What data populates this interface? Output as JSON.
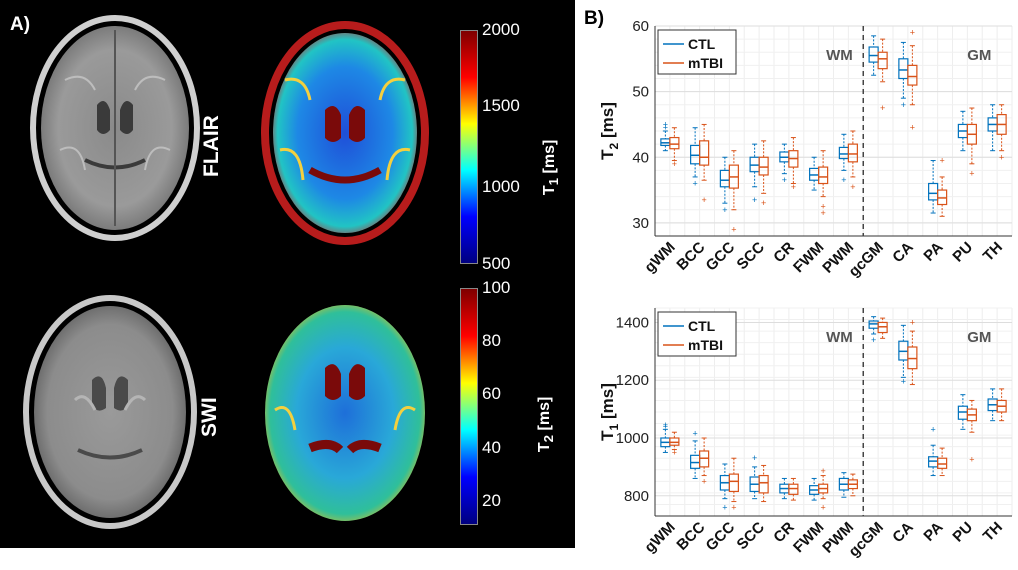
{
  "panel_a": {
    "label": "A)",
    "rows": [
      {
        "sequence": "FLAIR",
        "colorbar": {
          "ticks": [
            "2000",
            "1500",
            "1000",
            "500"
          ],
          "title_main": "T",
          "title_sub": "1",
          "title_unit": " [ms]"
        }
      },
      {
        "sequence": "SWI",
        "colorbar": {
          "ticks": [
            "100",
            "80",
            "60",
            "40",
            "20"
          ],
          "title_main": "T",
          "title_sub": "2",
          "title_unit": " [ms]"
        }
      }
    ]
  },
  "panel_b": {
    "label": "B)"
  },
  "colors": {
    "ctl": "#0072BD",
    "mtbi": "#D95319",
    "divider": "#444444"
  },
  "chart_data": [
    {
      "type": "box",
      "id": "t2",
      "ylabel_main": "T",
      "ylabel_sub": "2",
      "ylabel_unit": " [ms]",
      "ylim": [
        28,
        60
      ],
      "yticks": [
        30,
        40,
        50,
        60
      ],
      "grid": true,
      "legend_position": "top-left",
      "legend": [
        "CTL",
        "mTBI"
      ],
      "region_labels": [
        "WM",
        "GM"
      ],
      "categories": [
        "gWM",
        "BCC",
        "GCC",
        "SCC",
        "CR",
        "FWM",
        "PWM",
        "gcGM",
        "CA",
        "PA",
        "PU",
        "TH"
      ],
      "divider_after_index": 6,
      "series": [
        {
          "name": "CTL",
          "boxes": [
            {
              "q1": 41.8,
              "median": 42.2,
              "q3": 42.8,
              "whislo": 41.0,
              "whishi": 44.0,
              "outliers": [
                44.5,
                45.0
              ]
            },
            {
              "q1": 39.0,
              "median": 40.3,
              "q3": 41.8,
              "whislo": 37.0,
              "whishi": 44.5,
              "outliers": [
                36.0
              ]
            },
            {
              "q1": 35.5,
              "median": 36.5,
              "q3": 38.0,
              "whislo": 33.0,
              "whishi": 40.0,
              "outliers": [
                32.0
              ]
            },
            {
              "q1": 37.8,
              "median": 38.8,
              "q3": 40.0,
              "whislo": 35.5,
              "whishi": 42.0,
              "outliers": [
                33.5
              ]
            },
            {
              "q1": 39.3,
              "median": 40.0,
              "q3": 40.8,
              "whislo": 37.5,
              "whishi": 42.0,
              "outliers": [
                36.5
              ]
            },
            {
              "q1": 36.5,
              "median": 37.3,
              "q3": 38.3,
              "whislo": 35.0,
              "whishi": 40.0,
              "outliers": []
            },
            {
              "q1": 39.8,
              "median": 40.5,
              "q3": 41.5,
              "whislo": 38.0,
              "whishi": 43.5,
              "outliers": [
                36.5
              ]
            },
            {
              "q1": 54.5,
              "median": 55.5,
              "q3": 56.8,
              "whislo": 52.5,
              "whishi": 58.5,
              "outliers": []
            },
            {
              "q1": 52.0,
              "median": 53.3,
              "q3": 55.0,
              "whislo": 49.0,
              "whishi": 57.5,
              "outliers": [
                48.0
              ]
            },
            {
              "q1": 33.5,
              "median": 34.5,
              "q3": 36.0,
              "whislo": 31.5,
              "whishi": 39.5,
              "outliers": []
            },
            {
              "q1": 43.0,
              "median": 44.0,
              "q3": 45.0,
              "whislo": 41.0,
              "whishi": 47.0,
              "outliers": []
            },
            {
              "q1": 44.0,
              "median": 45.0,
              "q3": 46.0,
              "whislo": 41.0,
              "whishi": 48.0,
              "outliers": []
            }
          ]
        },
        {
          "name": "mTBI",
          "boxes": [
            {
              "q1": 41.3,
              "median": 42.0,
              "q3": 43.0,
              "whislo": 39.5,
              "whishi": 44.5,
              "outliers": [
                39.0
              ]
            },
            {
              "q1": 38.8,
              "median": 40.0,
              "q3": 42.5,
              "whislo": 36.5,
              "whishi": 45.0,
              "outliers": [
                33.5
              ]
            },
            {
              "q1": 35.3,
              "median": 37.0,
              "q3": 38.8,
              "whislo": 32.0,
              "whishi": 41.0,
              "outliers": [
                29.0
              ]
            },
            {
              "q1": 37.3,
              "median": 38.5,
              "q3": 40.0,
              "whislo": 34.5,
              "whishi": 42.5,
              "outliers": [
                33.0
              ]
            },
            {
              "q1": 38.5,
              "median": 39.8,
              "q3": 41.0,
              "whislo": 36.0,
              "whishi": 43.0,
              "outliers": [
                35.5
              ]
            },
            {
              "q1": 36.0,
              "median": 37.0,
              "q3": 38.5,
              "whislo": 34.0,
              "whishi": 41.0,
              "outliers": [
                31.5,
                32.5
              ]
            },
            {
              "q1": 39.3,
              "median": 40.5,
              "q3": 42.0,
              "whislo": 37.0,
              "whishi": 44.0,
              "outliers": [
                35.5
              ]
            },
            {
              "q1": 53.5,
              "median": 55.0,
              "q3": 56.0,
              "whislo": 51.5,
              "whishi": 58.0,
              "outliers": [
                47.5
              ]
            },
            {
              "q1": 51.0,
              "median": 52.3,
              "q3": 54.0,
              "whislo": 48.0,
              "whishi": 57.0,
              "outliers": [
                44.5,
                59.0
              ]
            },
            {
              "q1": 32.8,
              "median": 33.8,
              "q3": 35.0,
              "whislo": 31.0,
              "whishi": 37.0,
              "outliers": [
                39.5
              ]
            },
            {
              "q1": 42.0,
              "median": 43.5,
              "q3": 45.0,
              "whislo": 39.0,
              "whishi": 47.5,
              "outliers": [
                37.5
              ]
            },
            {
              "q1": 43.5,
              "median": 45.0,
              "q3": 46.5,
              "whislo": 41.0,
              "whishi": 48.0,
              "outliers": [
                40.0
              ]
            }
          ]
        }
      ]
    },
    {
      "type": "box",
      "id": "t1",
      "ylabel_main": "T",
      "ylabel_sub": "1",
      "ylabel_unit": " [ms]",
      "ylim": [
        730,
        1450
      ],
      "yticks": [
        800,
        1000,
        1200,
        1400
      ],
      "grid": true,
      "legend_position": "top-left",
      "legend": [
        "CTL",
        "mTBI"
      ],
      "region_labels": [
        "WM",
        "GM"
      ],
      "categories": [
        "gWM",
        "BCC",
        "GCC",
        "SCC",
        "CR",
        "FWM",
        "PWM",
        "gcGM",
        "CA",
        "PA",
        "PU",
        "TH"
      ],
      "divider_after_index": 6,
      "series": [
        {
          "name": "CTL",
          "boxes": [
            {
              "q1": 970,
              "median": 985,
              "q3": 1000,
              "whislo": 950,
              "whishi": 1030,
              "outliers": [
                1040,
                1045
              ]
            },
            {
              "q1": 895,
              "median": 915,
              "q3": 940,
              "whislo": 860,
              "whishi": 990,
              "outliers": [
                1015
              ]
            },
            {
              "q1": 820,
              "median": 845,
              "q3": 870,
              "whislo": 790,
              "whishi": 910,
              "outliers": [
                760
              ]
            },
            {
              "q1": 815,
              "median": 840,
              "q3": 865,
              "whislo": 790,
              "whishi": 900,
              "outliers": [
                930
              ]
            },
            {
              "q1": 810,
              "median": 825,
              "q3": 840,
              "whislo": 790,
              "whishi": 860,
              "outliers": []
            },
            {
              "q1": 805,
              "median": 820,
              "q3": 835,
              "whislo": 785,
              "whishi": 860,
              "outliers": []
            },
            {
              "q1": 820,
              "median": 840,
              "q3": 860,
              "whislo": 795,
              "whishi": 880,
              "outliers": []
            },
            {
              "q1": 1380,
              "median": 1395,
              "q3": 1405,
              "whislo": 1360,
              "whishi": 1420,
              "outliers": [
                1340
              ]
            },
            {
              "q1": 1270,
              "median": 1300,
              "q3": 1335,
              "whislo": 1210,
              "whishi": 1390,
              "outliers": [
                1195
              ]
            },
            {
              "q1": 900,
              "median": 920,
              "q3": 935,
              "whislo": 870,
              "whishi": 975,
              "outliers": [
                1030
              ]
            },
            {
              "q1": 1065,
              "median": 1090,
              "q3": 1110,
              "whislo": 1030,
              "whishi": 1150,
              "outliers": []
            },
            {
              "q1": 1095,
              "median": 1115,
              "q3": 1135,
              "whislo": 1060,
              "whishi": 1170,
              "outliers": []
            }
          ]
        },
        {
          "name": "mTBI",
          "boxes": [
            {
              "q1": 975,
              "median": 985,
              "q3": 1000,
              "whislo": 960,
              "whishi": 1020,
              "outliers": [
                950
              ]
            },
            {
              "q1": 900,
              "median": 930,
              "q3": 955,
              "whislo": 870,
              "whishi": 1000,
              "outliers": [
                850
              ]
            },
            {
              "q1": 815,
              "median": 850,
              "q3": 875,
              "whislo": 780,
              "whishi": 930,
              "outliers": [
                760
              ]
            },
            {
              "q1": 810,
              "median": 845,
              "q3": 870,
              "whislo": 780,
              "whishi": 905,
              "outliers": []
            },
            {
              "q1": 805,
              "median": 825,
              "q3": 840,
              "whislo": 785,
              "whishi": 860,
              "outliers": []
            },
            {
              "q1": 810,
              "median": 825,
              "q3": 840,
              "whislo": 790,
              "whishi": 870,
              "outliers": [
                760,
                885
              ]
            },
            {
              "q1": 825,
              "median": 840,
              "q3": 855,
              "whislo": 800,
              "whishi": 875,
              "outliers": []
            },
            {
              "q1": 1365,
              "median": 1385,
              "q3": 1400,
              "whislo": 1345,
              "whishi": 1415,
              "outliers": []
            },
            {
              "q1": 1240,
              "median": 1275,
              "q3": 1315,
              "whislo": 1185,
              "whishi": 1370,
              "outliers": [
                1400
              ]
            },
            {
              "q1": 895,
              "median": 910,
              "q3": 930,
              "whislo": 870,
              "whishi": 965,
              "outliers": []
            },
            {
              "q1": 1060,
              "median": 1080,
              "q3": 1100,
              "whislo": 1020,
              "whishi": 1130,
              "outliers": [
                925
              ]
            },
            {
              "q1": 1090,
              "median": 1110,
              "q3": 1130,
              "whislo": 1060,
              "whishi": 1170,
              "outliers": []
            }
          ]
        }
      ]
    }
  ]
}
